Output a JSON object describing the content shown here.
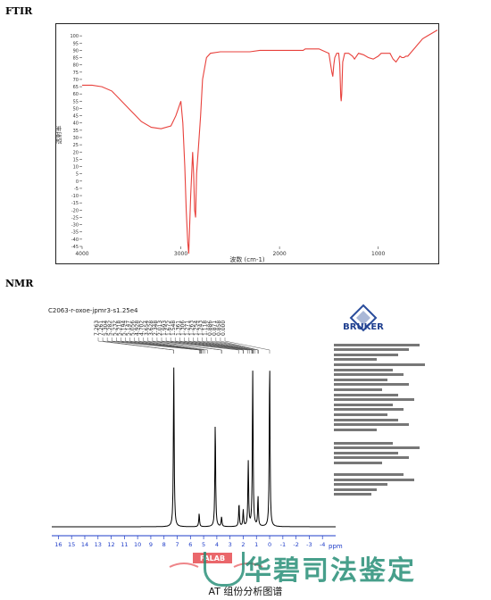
{
  "labels": {
    "ftir": "FTIR",
    "nmr": "NMR"
  },
  "caption": "AT 组份分析图谱",
  "watermark": {
    "text": "华碧司法鉴定",
    "color": "#1f8a72",
    "stamp_text": "FALAB"
  },
  "bruker": "BRUKER",
  "chart_data": [
    {
      "type": "line",
      "title": "",
      "xlabel": "波数 (cm-1)",
      "ylabel": "透射率",
      "xlim": [
        4000,
        400
      ],
      "ylim": [
        -45,
        105
      ],
      "x_ticks": [
        4000,
        3000,
        2000,
        1000
      ],
      "y_ticks": [
        100,
        95,
        90,
        85,
        80,
        75,
        70,
        65,
        60,
        55,
        50,
        45,
        40,
        35,
        30,
        25,
        20,
        15,
        10,
        5,
        0,
        -5,
        -10,
        -15,
        -20,
        -25,
        -30,
        -35,
        -40,
        -45
      ],
      "y_tick_labels": [
        "100",
        "95",
        "90",
        "85",
        "80",
        "75",
        "70",
        "65",
        "60",
        "55",
        "50",
        "45",
        "40",
        "35",
        "30",
        "25",
        "20",
        "15",
        "10",
        "5",
        "0",
        "-5",
        "-10",
        "-15",
        "-20",
        "-25",
        "-30",
        "-35",
        "-40",
        "-45"
      ],
      "color": "#e8413c",
      "grid": false,
      "series": [
        {
          "x": [
            4000,
            3900,
            3800,
            3700,
            3600,
            3500,
            3400,
            3300,
            3200,
            3100,
            3050,
            3000,
            2980,
            2960,
            2945,
            2930,
            2920,
            2900,
            2880,
            2870,
            2860,
            2850,
            2840,
            2820,
            2800,
            2780,
            2740,
            2700,
            2600,
            2500,
            2400,
            2300,
            2200,
            2100,
            2000,
            1900,
            1800,
            1760,
            1740,
            1720,
            1700,
            1650,
            1600,
            1500,
            1470,
            1460,
            1450,
            1440,
            1420,
            1400,
            1390,
            1380,
            1375,
            1370,
            1360,
            1340,
            1300,
            1260,
            1240,
            1200,
            1150,
            1100,
            1050,
            1000,
            970,
            930,
            900,
            880,
            850,
            820,
            800,
            780,
            760,
            740,
            720,
            700,
            650,
            600,
            550,
            500,
            450,
            400
          ],
          "y": [
            66,
            66,
            65,
            62,
            55,
            48,
            41,
            37,
            36,
            38,
            45,
            55,
            40,
            10,
            -20,
            -42,
            -50,
            -10,
            20,
            5,
            -20,
            -25,
            5,
            25,
            45,
            70,
            85,
            88,
            89,
            89,
            89,
            89,
            90,
            90,
            90,
            90,
            90,
            90,
            91,
            91,
            91,
            91,
            91,
            88,
            75,
            72,
            80,
            85,
            88,
            88,
            80,
            58,
            55,
            60,
            82,
            88,
            88,
            86,
            84,
            88,
            87,
            85,
            84,
            86,
            88,
            88,
            88,
            88,
            84,
            82,
            84,
            86,
            85,
            85,
            86,
            86,
            90,
            94,
            98,
            100,
            102,
            104
          ]
        }
      ]
    },
    {
      "type": "line",
      "title": "",
      "xlabel": "ppm",
      "xlim": [
        16.5,
        -5
      ],
      "x_ticks": [
        16,
        15,
        14,
        13,
        12,
        11,
        10,
        9,
        8,
        7,
        6,
        5,
        4,
        3,
        2,
        1,
        0,
        -1,
        -2,
        -3,
        -4
      ],
      "x_tick_labels": [
        "16",
        "15",
        "14",
        "13",
        "12",
        "11",
        "10",
        "9",
        "8",
        "7",
        "6",
        "5",
        "4",
        "3",
        "2",
        "1",
        "0",
        "-1",
        "-2",
        "-3",
        "-4"
      ],
      "x_unit_label": "ppm",
      "header_text": "C2063-r-oxoe-jpmr3-s1.25e4",
      "peak_labels": [
        "7.263",
        "7.261",
        "5.304",
        "5.282",
        "5.232",
        "5.218",
        "5.194",
        "5.147",
        "5.056",
        "4.928",
        "4.702",
        "3.654",
        "3.628",
        "2.348",
        "2.013",
        "1.993",
        "1.672",
        "1.548",
        "1.361",
        "1.306",
        "1.271",
        "1.263",
        "1.254",
        "1.243",
        "1.118",
        "0.886",
        "0.871",
        "0.858",
        "0.000"
      ],
      "color": "#000000",
      "grid": false,
      "peaks": [
        {
          "ppm": 7.26,
          "height": 100
        },
        {
          "ppm": 5.34,
          "height": 8
        },
        {
          "ppm": 4.12,
          "height": 63
        },
        {
          "ppm": 3.64,
          "height": 6
        },
        {
          "ppm": 2.32,
          "height": 14
        },
        {
          "ppm": 2.0,
          "height": 10
        },
        {
          "ppm": 1.62,
          "height": 40
        },
        {
          "ppm": 1.28,
          "height": 96
        },
        {
          "ppm": 0.88,
          "height": 18
        },
        {
          "ppm": 0.0,
          "height": 100
        }
      ]
    }
  ]
}
